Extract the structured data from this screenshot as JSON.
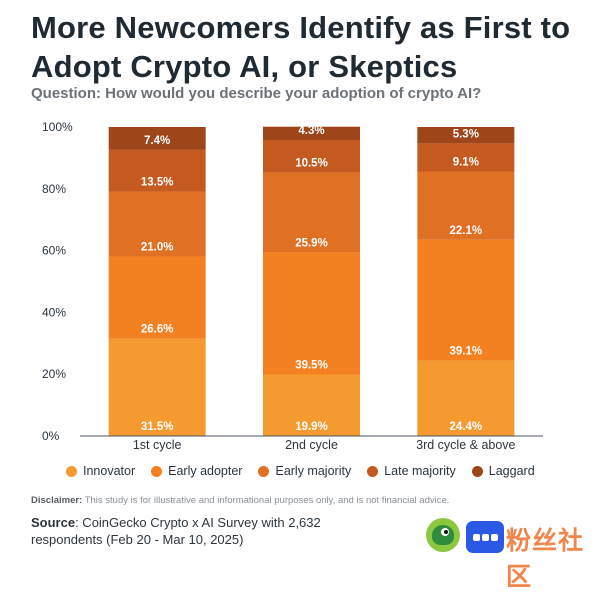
{
  "header": {
    "title": "More Newcomers Identify as First to Adopt Crypto AI, or Skeptics",
    "subtitle": "Question: How would you describe your adoption of crypto AI?"
  },
  "chart_data": {
    "type": "bar",
    "stacked": true,
    "categories": [
      "1st cycle",
      "2nd cycle",
      "3rd cycle & above"
    ],
    "series": [
      {
        "name": "Innovator",
        "color": "#f59a30",
        "values": [
          31.5,
          19.9,
          24.4
        ],
        "labels": [
          "31.5%",
          "19.9%",
          "24.4%"
        ]
      },
      {
        "name": "Early adopter",
        "color": "#f38021",
        "values": [
          26.6,
          39.5,
          39.1
        ],
        "labels": [
          "26.6%",
          "39.5%",
          "39.1%"
        ]
      },
      {
        "name": "Early majority",
        "color": "#e07023",
        "values": [
          21.0,
          25.9,
          22.1
        ],
        "labels": [
          "21.0%",
          "25.9%",
          "22.1%"
        ]
      },
      {
        "name": "Late majority",
        "color": "#c45a1f",
        "values": [
          13.5,
          10.5,
          9.1
        ],
        "labels": [
          "13.5%",
          "10.5%",
          "9.1%"
        ]
      },
      {
        "name": "Laggard",
        "color": "#9e4519",
        "values": [
          7.4,
          4.3,
          5.3
        ],
        "labels": [
          "7.4%",
          "4.3%",
          "5.3%"
        ]
      }
    ],
    "yticks": [
      "0%",
      "20%",
      "40%",
      "60%",
      "80%",
      "100%"
    ],
    "ylim": [
      0,
      100
    ],
    "legend_position": "bottom"
  },
  "footer": {
    "disclaimer_label": "Disclaimer:",
    "disclaimer_text": " This study is for illustrative and informational purposes only, and is not financial advice.",
    "source_label": "Source",
    "source_text": ": CoinGecko Crypto x AI Survey with 2,632 respondents (Feb 20 - Mar 10, 2025)"
  },
  "watermark": "粉丝社区",
  "icons": {
    "brand_logo": "coingecko-logo-icon",
    "app_logo": "app-logo-icon"
  }
}
